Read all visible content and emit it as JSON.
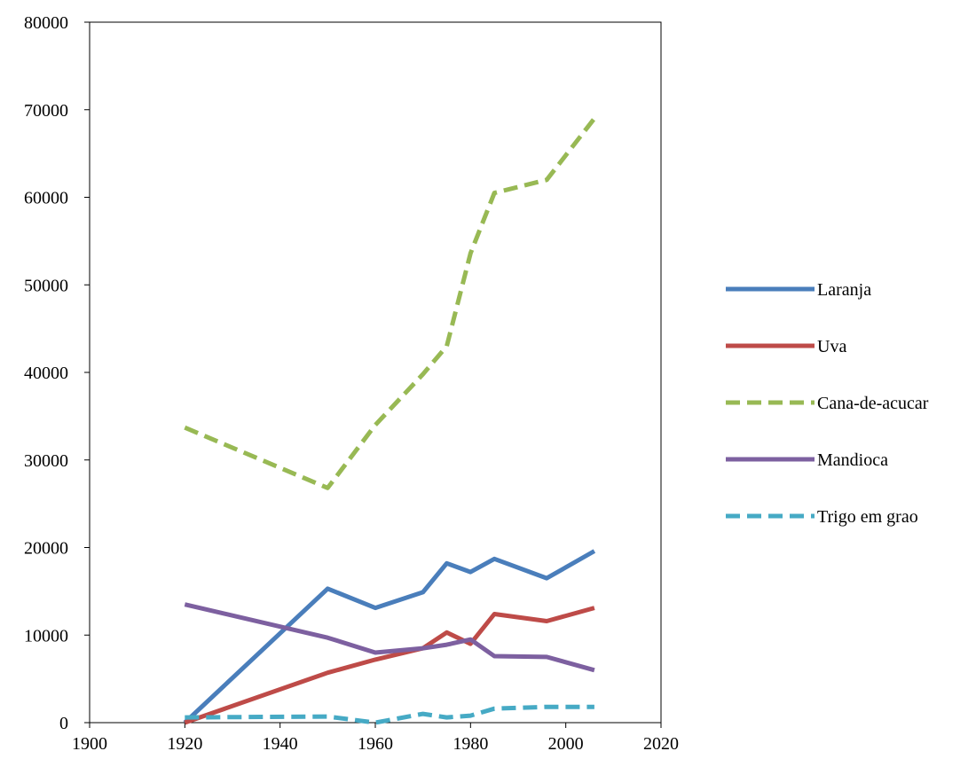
{
  "chart_data": {
    "type": "line",
    "title": "",
    "xlabel": "",
    "ylabel": "",
    "xlim": [
      1900,
      2020
    ],
    "ylim": [
      0,
      80000
    ],
    "x_ticks": [
      1900,
      1920,
      1940,
      1960,
      1980,
      2000,
      2020
    ],
    "y_ticks": [
      0,
      10000,
      20000,
      30000,
      40000,
      50000,
      60000,
      70000,
      80000
    ],
    "grid": false,
    "legend_position": "right",
    "series": [
      {
        "name": "Laranja",
        "color": "#4a7ebb",
        "dashed": false,
        "x": [
          1920,
          1950,
          1960,
          1970,
          1975,
          1980,
          1985,
          1996,
          2006
        ],
        "y": [
          0,
          15300,
          13100,
          14900,
          18200,
          17200,
          18700,
          16500,
          19600
        ]
      },
      {
        "name": "Uva",
        "color": "#be4b48",
        "dashed": false,
        "x": [
          1920,
          1950,
          1960,
          1970,
          1975,
          1980,
          1985,
          1996,
          2006
        ],
        "y": [
          0,
          5700,
          7200,
          8500,
          10300,
          9000,
          12400,
          11600,
          13100
        ]
      },
      {
        "name": "Cana-de-acucar",
        "color": "#98b954",
        "dashed": true,
        "x": [
          1920,
          1950,
          1960,
          1970,
          1975,
          1980,
          1985,
          1996,
          2006
        ],
        "y": [
          33700,
          26800,
          34000,
          39800,
          43000,
          53600,
          60500,
          62000,
          69000
        ]
      },
      {
        "name": "Mandioca",
        "color": "#7d60a0",
        "dashed": false,
        "x": [
          1920,
          1950,
          1960,
          1970,
          1975,
          1980,
          1985,
          1996,
          2006
        ],
        "y": [
          13500,
          9700,
          8000,
          8500,
          8900,
          9500,
          7600,
          7500,
          6000
        ]
      },
      {
        "name": "Trigo em grao",
        "color": "#46aac5",
        "dashed": true,
        "x": [
          1920,
          1950,
          1960,
          1970,
          1975,
          1980,
          1985,
          1996,
          2006
        ],
        "y": [
          600,
          700,
          0,
          1000,
          600,
          800,
          1600,
          1800,
          1800
        ]
      }
    ]
  }
}
